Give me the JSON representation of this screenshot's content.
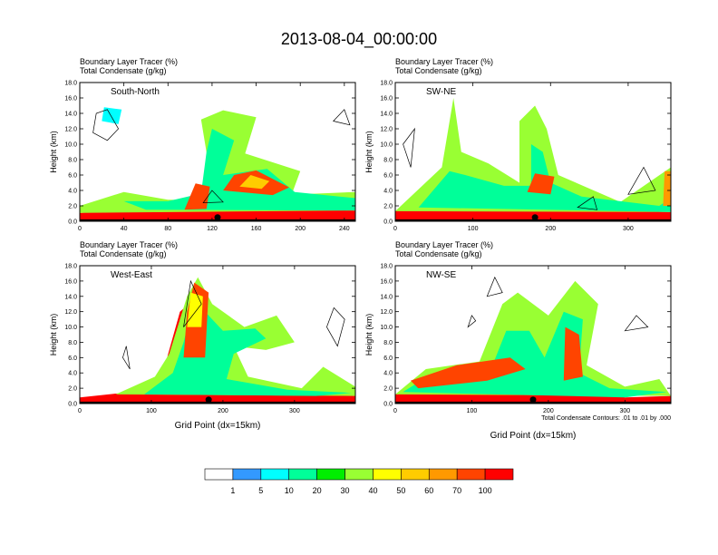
{
  "title": "2013-08-04_00:00:00",
  "panel_header": {
    "line1": "Boundary Layer Tracer   (%)",
    "line2": "Total Condensate   (g/kg)"
  },
  "ylabel": "Height (km)",
  "xlabel": "Grid Point (dx=15km)",
  "contour_note": "Total Condensate Contours: .01 to .01 by .000",
  "colorbar": {
    "labels": [
      "1",
      "5",
      "10",
      "20",
      "30",
      "40",
      "50",
      "60",
      "70",
      "100"
    ],
    "colors": [
      "#ffffff",
      "#3399ff",
      "#00ffff",
      "#00ff99",
      "#00ee00",
      "#99ff33",
      "#ffff00",
      "#ffcc00",
      "#ff9900",
      "#ff4400",
      "#ff0000"
    ]
  },
  "chart_data": [
    {
      "type": "heatmap",
      "name": "South-North",
      "ylabel": "Height (km)",
      "xlim": [
        0,
        250
      ],
      "ylim": [
        0,
        18
      ],
      "xticks": [
        0,
        40,
        80,
        120,
        160,
        200,
        240
      ],
      "yticks": [
        0,
        2,
        4,
        6,
        8,
        10,
        12,
        14,
        16,
        18
      ],
      "ytick_labels": [
        "0.0",
        "2.0",
        "4.0",
        "6.0",
        "8.0",
        "10.0",
        "12.0",
        "14.0",
        "16.0",
        "18.0"
      ],
      "marker": {
        "x": 125,
        "y": 0.5
      }
    },
    {
      "type": "heatmap",
      "name": "SW-NE",
      "ylabel": "Height (km)",
      "xlim": [
        0,
        355
      ],
      "ylim": [
        0,
        18
      ],
      "xticks": [
        0,
        100,
        200,
        300
      ],
      "yticks": [
        0,
        2,
        4,
        6,
        8,
        10,
        12,
        14,
        16,
        18
      ],
      "ytick_labels": [
        "0.0",
        "2.0",
        "4.0",
        "6.0",
        "8.0",
        "10.0",
        "12.0",
        "14.0",
        "16.0",
        "18.0"
      ],
      "marker": {
        "x": 180,
        "y": 0.5
      }
    },
    {
      "type": "heatmap",
      "name": "West-East",
      "ylabel": "Height (km)",
      "xlabel": "Grid Point (dx=15km)",
      "xlim": [
        0,
        385
      ],
      "ylim": [
        0,
        18
      ],
      "xticks": [
        0,
        100,
        200,
        300
      ],
      "yticks": [
        0,
        2,
        4,
        6,
        8,
        10,
        12,
        14,
        16,
        18
      ],
      "ytick_labels": [
        "0.0",
        "2.0",
        "4.0",
        "6.0",
        "8.0",
        "10.0",
        "12.0",
        "14.0",
        "16.0",
        "18.0"
      ],
      "marker": {
        "x": 180,
        "y": 0.5
      }
    },
    {
      "type": "heatmap",
      "name": "NW-SE",
      "ylabel": "Height (km)",
      "xlabel": "Grid Point (dx=15km)",
      "xlim": [
        0,
        360
      ],
      "ylim": [
        0,
        18
      ],
      "xticks": [
        0,
        100,
        200,
        300
      ],
      "yticks": [
        0,
        2,
        4,
        6,
        8,
        10,
        12,
        14,
        16,
        18
      ],
      "ytick_labels": [
        "0.0",
        "2.0",
        "4.0",
        "6.0",
        "8.0",
        "10.0",
        "12.0",
        "14.0",
        "16.0",
        "18.0"
      ],
      "marker": {
        "x": 180,
        "y": 0.5
      }
    }
  ]
}
